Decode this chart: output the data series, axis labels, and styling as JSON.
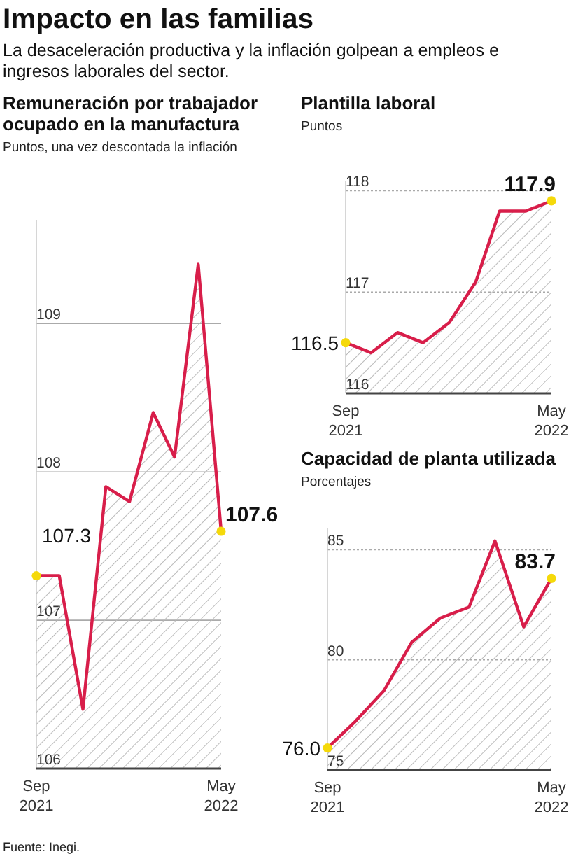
{
  "chart_data": [
    {
      "type": "other",
      "title": "Impacto en las familias",
      "subtitle": "La desaceleración productiva y la inflación golpean a empleos e ingresos laborales del sector.",
      "annotations": [
        "Fuente: Inegi."
      ]
    },
    {
      "type": "area",
      "title": "Remuneración por trabajador ocupado en la manufactura",
      "subtitle": "Puntos, una vez descontada la inflación",
      "x": [
        "2021-09",
        "2021-10",
        "2021-11",
        "2021-12",
        "2022-01",
        "2022-02",
        "2022-03",
        "2022-04",
        "2022-05"
      ],
      "series": [
        {
          "color": "#d81e4a",
          "values": [
            107.3,
            107.3,
            106.4,
            107.9,
            107.8,
            108.4,
            108.1,
            109.4,
            107.6
          ],
          "value_labels": [
            "107.3",
            null,
            null,
            null,
            null,
            null,
            null,
            null,
            "107.6"
          ]
        },
        {
          "type": "scatter",
          "color": "#f5d90a",
          "marker": "circle",
          "values": [
            107.3,
            null,
            null,
            null,
            null,
            null,
            null,
            null,
            107.6
          ]
        }
      ],
      "xlim": [
        "2021-09",
        "2022-05"
      ],
      "xticks": [
        {
          "value": "2021-09",
          "label": "Sep 2021"
        },
        {
          "value": "2022-05",
          "label": "May 2022"
        }
      ],
      "ylim": [
        106,
        109.7
      ],
      "yticks": [
        106,
        107,
        108,
        109
      ],
      "grid": "y"
    },
    {
      "type": "area",
      "title": "Plantilla laboral",
      "subtitle": "Puntos",
      "x": [
        "2021-09",
        "2021-10",
        "2021-11",
        "2021-12",
        "2022-01",
        "2022-02",
        "2022-03",
        "2022-04",
        "2022-05"
      ],
      "series": [
        {
          "color": "#d81e4a",
          "values": [
            116.5,
            116.4,
            116.6,
            116.5,
            116.7,
            117.1,
            117.8,
            117.8,
            117.9
          ],
          "value_labels": [
            "116.5",
            null,
            null,
            null,
            null,
            null,
            null,
            null,
            "117.9"
          ]
        },
        {
          "type": "scatter",
          "color": "#f5d90a",
          "marker": "circle",
          "values": [
            116.5,
            null,
            null,
            null,
            null,
            null,
            null,
            null,
            117.9
          ]
        }
      ],
      "xlim": [
        "2021-09",
        "2022-05"
      ],
      "xticks": [
        {
          "value": "2021-09",
          "label": "Sep 2021"
        },
        {
          "value": "2022-05",
          "label": "May 2022"
        }
      ],
      "ylim": [
        116,
        118.1
      ],
      "yticks": [
        116,
        117,
        118
      ],
      "grid": "y"
    },
    {
      "type": "area",
      "title": "Capacidad de planta utilizada",
      "subtitle": "Porcentajes",
      "x": [
        "2021-09",
        "2021-10",
        "2021-11",
        "2021-12",
        "2022-01",
        "2022-02",
        "2022-03",
        "2022-04",
        "2022-05"
      ],
      "series": [
        {
          "color": "#d81e4a",
          "values": [
            76.0,
            77.2,
            78.6,
            80.8,
            81.9,
            82.4,
            85.4,
            81.5,
            83.7
          ],
          "value_labels": [
            "76.0",
            null,
            null,
            null,
            null,
            null,
            null,
            null,
            "83.7"
          ]
        },
        {
          "type": "scatter",
          "color": "#f5d90a",
          "marker": "circle",
          "values": [
            76.0,
            null,
            null,
            null,
            null,
            null,
            null,
            null,
            83.7
          ]
        }
      ],
      "xlim": [
        "2021-09",
        "2022-05"
      ],
      "xticks": [
        {
          "value": "2021-09",
          "label": "Sep 2021"
        },
        {
          "value": "2022-05",
          "label": "May 2022"
        }
      ],
      "ylim": [
        75,
        86
      ],
      "yticks": [
        75,
        80,
        85
      ],
      "grid": "y"
    }
  ]
}
